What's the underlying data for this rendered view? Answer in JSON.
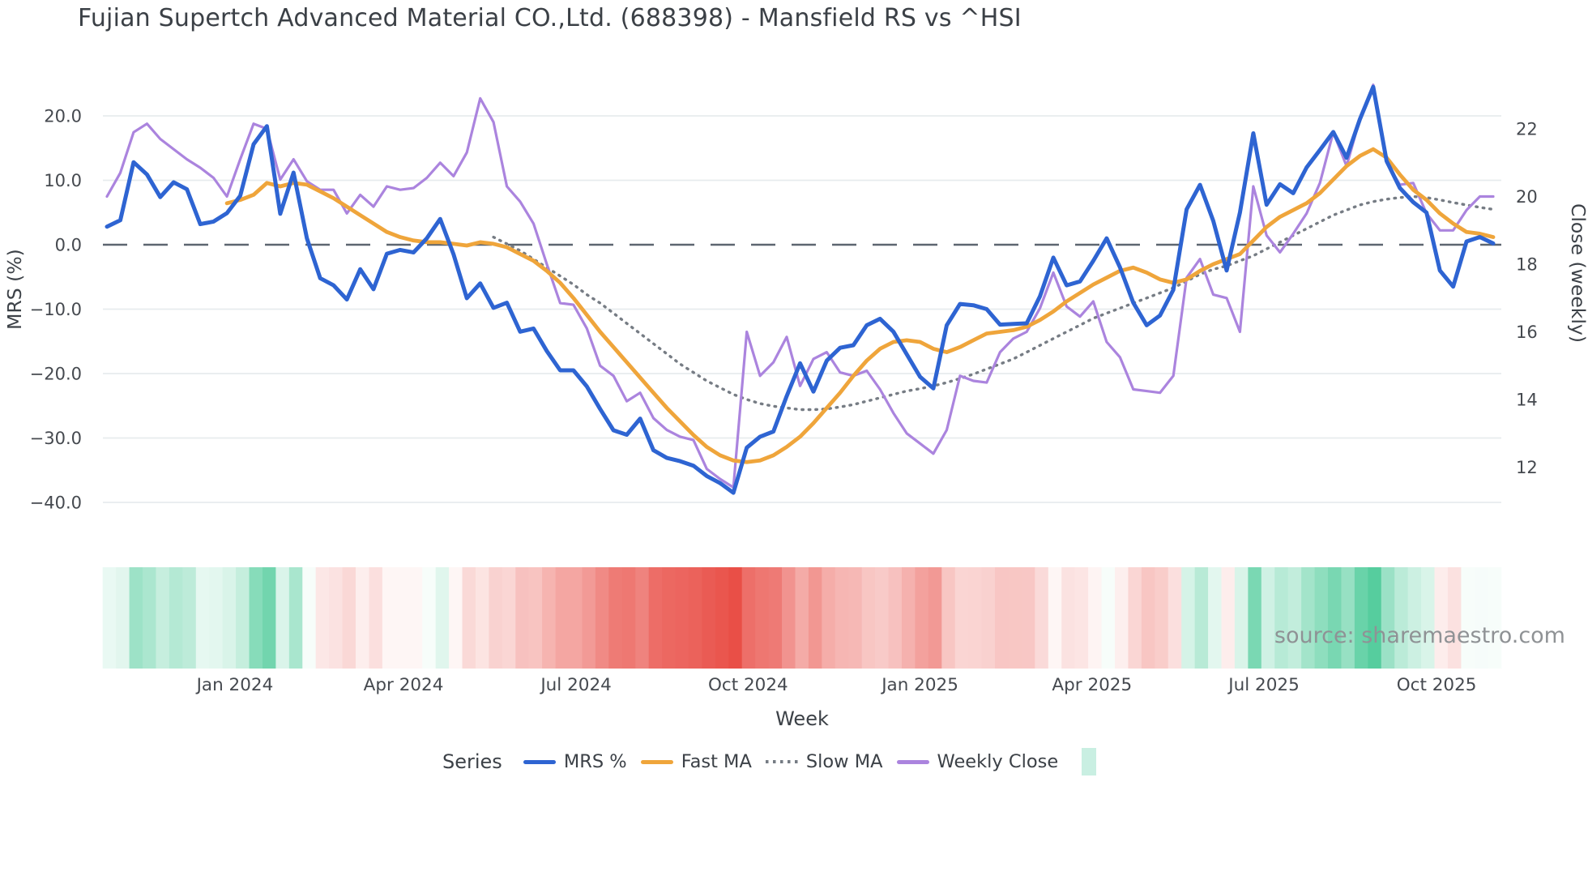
{
  "title": "Fujian Supertch Advanced Material CO.,Ltd. (688398) - Mansfield RS vs ^HSI",
  "source": "source: sharemaestro.com",
  "colors": {
    "mrs": "#2e64d2",
    "fast_ma": "#efa53b",
    "slow_ma": "#767c84",
    "weekly_close": "#ab84de",
    "zero_line": "#5d6670",
    "gridline": "#e7ebee",
    "heatmap_positive": "#56cd9e",
    "heatmap_negative": "#e84840",
    "heatmap_legend_swatch": "#c9efe2",
    "text_dark": "#3c4147",
    "tick_text": "#45494f",
    "source_text": "#8f9295"
  },
  "axes": {
    "left": {
      "title": "MRS (%)",
      "tick_values": [
        20,
        10,
        0,
        -10,
        -20,
        -30,
        -40
      ],
      "tick_labels": [
        "20.0",
        "10.0",
        "0.0",
        "−10.0",
        "−20.0",
        "−30.0",
        "−40.0"
      ]
    },
    "right": {
      "title": "Close (weekly)",
      "tick_values": [
        22,
        20,
        18,
        16,
        14,
        12
      ],
      "tick_labels": [
        "22",
        "20",
        "18",
        "16",
        "14",
        "12"
      ]
    },
    "x": {
      "title": "Week",
      "ticks": [
        {
          "label": "Jan 2024",
          "week_index": 9.6
        },
        {
          "label": "Apr 2024",
          "week_index": 22.25
        },
        {
          "label": "Jul 2024",
          "week_index": 35.2
        },
        {
          "label": "Oct 2024",
          "week_index": 48.1
        },
        {
          "label": "Jan 2025",
          "week_index": 61.0
        },
        {
          "label": "Apr 2025",
          "week_index": 73.9
        },
        {
          "label": "Jul 2025",
          "week_index": 86.8
        },
        {
          "label": "Oct 2025",
          "week_index": 99.75
        }
      ]
    }
  },
  "legend": {
    "label": "Series",
    "items": [
      {
        "label": "MRS %",
        "style": "line",
        "color": "#2e64d2"
      },
      {
        "label": "Fast MA",
        "style": "line",
        "color": "#efa53b"
      },
      {
        "label": "Slow MA",
        "style": "dotted",
        "color": "#767c84"
      },
      {
        "label": "Weekly Close",
        "style": "line",
        "color": "#ab84de"
      },
      {
        "label": "",
        "style": "square",
        "color": "#c9efe2"
      }
    ]
  },
  "chart_data": {
    "type": "line",
    "title": "Fujian Supertch Advanced Material CO.,Ltd. (688398) - Mansfield RS vs ^HSI",
    "xlabel": "Week",
    "ylabel_left": "MRS (%)",
    "ylabel_right": "Close (weekly)",
    "ylim_left": [
      -43,
      25
    ],
    "ylim_right": [
      11,
      23.5
    ],
    "grid": true,
    "legend_position": "bottom",
    "weeks": {
      "start": "2023-10-27",
      "interval_days": 7,
      "count": 105
    },
    "series": [
      {
        "name": "MRS %",
        "axis": "left",
        "color": "#2e64d2",
        "line_style": "solid",
        "values": [
          2.8,
          3.8,
          12.8,
          10.9,
          7.4,
          9.7,
          8.6,
          3.2,
          3.6,
          4.9,
          7.6,
          15.6,
          18.4,
          4.8,
          11.2,
          1.0,
          -5.2,
          -6.3,
          -8.5,
          -3.8,
          -6.9,
          -1.4,
          -0.8,
          -1.2,
          1.0,
          4.0,
          -1.5,
          -8.3,
          -6.0,
          -9.8,
          -9.0,
          -13.5,
          -13.0,
          -16.5,
          -19.5,
          -19.5,
          -22.0,
          -25.5,
          -28.8,
          -29.5,
          -27.0,
          -31.9,
          -33.1,
          -33.6,
          -34.3,
          -35.9,
          -37.0,
          -38.5,
          -31.5,
          -29.8,
          -29.0,
          -23.5,
          -18.4,
          -22.8,
          -18.0,
          -16.0,
          -15.6,
          -12.5,
          -11.5,
          -13.5,
          -17.0,
          -20.5,
          -22.3,
          -12.5,
          -9.2,
          -9.4,
          -10.0,
          -12.4,
          -12.3,
          -12.2,
          -8.0,
          -2.0,
          -6.3,
          -5.7,
          -2.5,
          1.0,
          -3.5,
          -9.0,
          -12.5,
          -11.0,
          -7.0,
          5.5,
          9.3,
          3.7,
          -4.0,
          5.0,
          17.3,
          6.2,
          9.4,
          8.0,
          12.0,
          14.7,
          17.5,
          13.5,
          19.5,
          24.5,
          13.0,
          8.8,
          6.6,
          5.0,
          -4.0,
          -6.5,
          0.5,
          1.2,
          0.2
        ]
      },
      {
        "name": "Fast MA",
        "axis": "right",
        "color": "#efa53b",
        "line_style": "solid",
        "values": [
          null,
          null,
          null,
          null,
          null,
          null,
          null,
          null,
          null,
          19.8,
          19.9,
          20.05,
          20.4,
          20.3,
          20.4,
          20.35,
          20.15,
          19.95,
          19.7,
          19.45,
          19.2,
          18.95,
          18.8,
          18.7,
          18.65,
          18.65,
          18.6,
          18.55,
          18.65,
          18.6,
          18.5,
          18.3,
          18.1,
          17.8,
          17.45,
          17.0,
          16.5,
          16.0,
          15.55,
          15.1,
          14.65,
          14.2,
          13.75,
          13.35,
          12.95,
          12.6,
          12.35,
          12.2,
          12.15,
          12.2,
          12.35,
          12.6,
          12.9,
          13.3,
          13.75,
          14.2,
          14.7,
          15.15,
          15.5,
          15.7,
          15.75,
          15.7,
          15.5,
          15.4,
          15.55,
          15.75,
          15.95,
          16.0,
          16.05,
          16.15,
          16.35,
          16.6,
          16.9,
          17.15,
          17.4,
          17.6,
          17.8,
          17.9,
          17.75,
          17.55,
          17.45,
          17.55,
          17.8,
          18.0,
          18.15,
          18.3,
          18.7,
          19.1,
          19.4,
          19.6,
          19.8,
          20.1,
          20.5,
          20.9,
          21.2,
          21.4,
          21.15,
          20.65,
          20.2,
          19.9,
          19.5,
          19.2,
          18.95,
          18.9,
          18.8
        ]
      },
      {
        "name": "Slow MA",
        "axis": "right",
        "color": "#767c84",
        "line_style": "dotted",
        "values": [
          null,
          null,
          null,
          null,
          null,
          null,
          null,
          null,
          null,
          null,
          null,
          null,
          null,
          null,
          null,
          null,
          null,
          null,
          null,
          null,
          null,
          null,
          null,
          null,
          null,
          null,
          null,
          null,
          null,
          18.8,
          18.6,
          18.4,
          18.15,
          17.9,
          17.65,
          17.4,
          17.1,
          16.85,
          16.55,
          16.25,
          15.95,
          15.65,
          15.35,
          15.05,
          14.8,
          14.55,
          14.35,
          14.15,
          14.0,
          13.88,
          13.8,
          13.75,
          13.7,
          13.7,
          13.72,
          13.78,
          13.85,
          13.95,
          14.05,
          14.15,
          14.25,
          14.32,
          14.4,
          14.5,
          14.62,
          14.75,
          14.9,
          15.05,
          15.2,
          15.4,
          15.6,
          15.8,
          16.0,
          16.2,
          16.4,
          16.55,
          16.7,
          16.85,
          17.0,
          17.15,
          17.3,
          17.5,
          17.7,
          17.85,
          17.95,
          18.1,
          18.25,
          18.45,
          18.65,
          18.85,
          19.05,
          19.25,
          19.45,
          19.6,
          19.75,
          19.85,
          19.92,
          19.97,
          20.0,
          19.97,
          19.9,
          19.82,
          19.75,
          19.68,
          19.62
        ]
      },
      {
        "name": "Weekly Close",
        "axis": "right",
        "color": "#ab84de",
        "line_style": "solid",
        "values": [
          20.0,
          20.7,
          21.9,
          22.15,
          21.7,
          21.4,
          21.1,
          20.85,
          20.55,
          20.0,
          21.1,
          22.15,
          22.0,
          20.5,
          21.1,
          20.45,
          20.2,
          20.2,
          19.5,
          20.05,
          19.7,
          20.3,
          20.2,
          20.25,
          20.55,
          21.0,
          20.6,
          21.3,
          22.9,
          22.2,
          20.3,
          19.85,
          19.2,
          18.0,
          16.85,
          16.8,
          16.1,
          15.0,
          14.7,
          13.95,
          14.2,
          13.45,
          13.1,
          12.9,
          12.8,
          11.95,
          11.65,
          11.4,
          16.0,
          14.7,
          15.1,
          15.85,
          14.4,
          15.2,
          15.4,
          14.8,
          14.7,
          14.85,
          14.3,
          13.6,
          13.0,
          12.7,
          12.4,
          13.1,
          14.7,
          14.55,
          14.5,
          15.4,
          15.8,
          16.0,
          16.7,
          17.75,
          16.75,
          16.45,
          16.9,
          15.7,
          15.25,
          14.3,
          14.25,
          14.2,
          14.7,
          17.6,
          18.15,
          17.1,
          17.0,
          16.0,
          20.3,
          18.85,
          18.35,
          18.9,
          19.5,
          20.4,
          21.9,
          20.9,
          22.3,
          23.3,
          21.0,
          20.35,
          20.4,
          19.5,
          19.0,
          19.0,
          19.6,
          20.0,
          20.0
        ]
      }
    ],
    "heatmap_band": {
      "description": "weekly relative-strength heatmap strip under plot; green = positive MRS, red = negative MRS, intensity scales with magnitude",
      "source_series": "MRS %",
      "positive_color": "#56cd9e",
      "negative_color": "#e84840",
      "positive_ref": 22,
      "negative_ref": 40
    }
  }
}
